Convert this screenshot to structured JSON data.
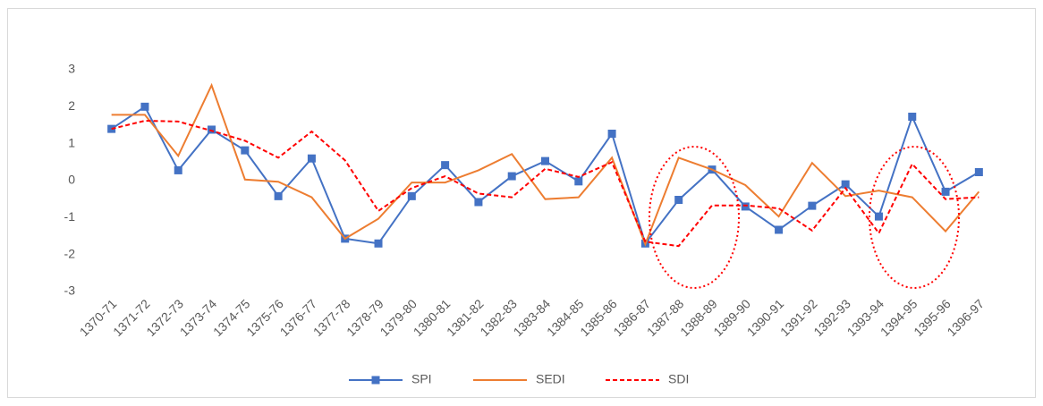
{
  "chart_data": {
    "type": "line",
    "categories": [
      "1370-71",
      "1371-72",
      "1372-73",
      "1373-74",
      "1374-75",
      "1375-76",
      "1376-77",
      "1377-78",
      "1378-79",
      "1379-80",
      "1380-81",
      "1381-82",
      "1382-83",
      "1383-84",
      "1384-85",
      "1385-86",
      "1386-87",
      "1387-88",
      "1388-89",
      "1389-90",
      "1390-91",
      "1391-92",
      "1392-93",
      "1393-94",
      "1394-95",
      "1395-96",
      "1396-97"
    ],
    "series": [
      {
        "name": "SPI",
        "color": "#4472c4",
        "marker": "square",
        "dashed": false,
        "values": [
          1.4,
          2.0,
          0.28,
          1.38,
          0.82,
          -0.42,
          0.6,
          -1.57,
          -1.7,
          -0.42,
          0.42,
          -0.58,
          0.12,
          0.53,
          -0.02,
          1.27,
          -1.7,
          -0.52,
          0.3,
          -0.7,
          -1.33,
          -0.68,
          -0.1,
          -0.97,
          1.73,
          -0.3,
          0.23
        ]
      },
      {
        "name": "SEDI",
        "color": "#ed7d31",
        "marker": "none",
        "dashed": false,
        "values": [
          1.78,
          1.78,
          0.67,
          2.58,
          0.03,
          -0.03,
          -0.45,
          -1.57,
          -1.03,
          -0.05,
          -0.05,
          0.28,
          0.72,
          -0.5,
          -0.45,
          0.62,
          -1.72,
          0.62,
          0.3,
          -0.12,
          -0.97,
          0.48,
          -0.42,
          -0.27,
          -0.45,
          -1.37,
          -0.3
        ]
      },
      {
        "name": "SDI",
        "color": "#ff0000",
        "marker": "none",
        "dashed": true,
        "values": [
          1.4,
          1.62,
          1.6,
          1.35,
          1.08,
          0.62,
          1.33,
          0.55,
          -0.82,
          -0.2,
          0.12,
          -0.35,
          -0.45,
          0.32,
          0.1,
          0.5,
          -1.65,
          -1.77,
          -0.67,
          -0.67,
          -0.75,
          -1.35,
          -0.2,
          -1.42,
          0.45,
          -0.5,
          -0.45
        ]
      }
    ],
    "ylim": [
      -3,
      3
    ],
    "yticks": [
      -3,
      -2,
      -1,
      0,
      1,
      2,
      3
    ],
    "grid": false,
    "legend": "bottom"
  }
}
